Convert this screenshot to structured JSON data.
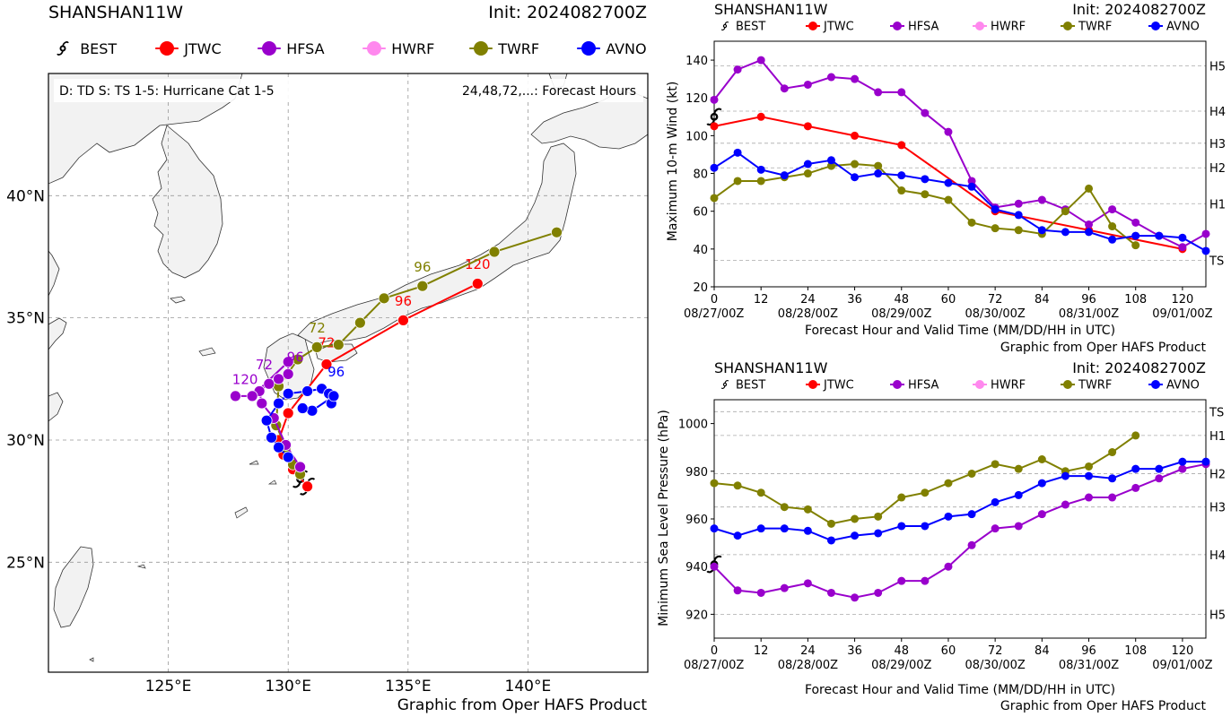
{
  "map": {
    "storm": "SHANSHAN11W",
    "init": "Init: 2024082700Z",
    "legend_box": "D: TD  S: TS  1-5: Hurricane Cat 1-5",
    "hours_note": "24,48,72,...: Forecast Hours",
    "footer": "Graphic from Oper HAFS Product",
    "lat_ticks": [
      "25°N",
      "30°N",
      "35°N",
      "40°N"
    ],
    "lon_ticks": [
      "125°E",
      "130°E",
      "135°E",
      "140°E"
    ]
  },
  "legend": [
    {
      "name": "BEST",
      "color": "#000000",
      "icon": "hurricane-symbol"
    },
    {
      "name": "JTWC",
      "color": "#ff0000",
      "icon": "dot"
    },
    {
      "name": "HFSA",
      "color": "#9900cc",
      "icon": "dot"
    },
    {
      "name": "HWRF",
      "color": "#ff88ee",
      "icon": "dot"
    },
    {
      "name": "TWRF",
      "color": "#808000",
      "icon": "dot"
    },
    {
      "name": "AVNO",
      "color": "#0000ff",
      "icon": "dot"
    }
  ],
  "wind_panel": {
    "storm": "SHANSHAN11W",
    "init": "Init: 2024082700Z",
    "ylabel": "Maximum 10-m Wind (kt)",
    "xlabel": "Forecast Hour and Valid Time (MM/DD/HH in UTC)",
    "footer": "Graphic from Oper HAFS Product"
  },
  "pres_panel": {
    "storm": "SHANSHAN11W",
    "init": "Init: 2024082700Z",
    "ylabel": "Minimum Sea Level Pressure (hPa)",
    "xlabel": "Forecast Hour and Valid Time (MM/DD/HH in UTC)",
    "footer": "Graphic from Oper HAFS Product"
  },
  "chart_data": [
    {
      "type": "scatter",
      "title": "SHANSHAN11W",
      "description_text": "Forecast track map",
      "xlim": [
        120,
        145
      ],
      "ylim": [
        20.5,
        45
      ],
      "x_ticks": [
        125,
        130,
        135,
        140
      ],
      "y_ticks": [
        25,
        30,
        35,
        40
      ],
      "grid": true,
      "series": [
        {
          "name": "BEST",
          "color": "#000000",
          "lon": [
            130.8,
            130.5
          ],
          "lat": [
            28.1,
            28.4
          ]
        },
        {
          "name": "JTWC",
          "color": "#ff0000",
          "lon": [
            130.8,
            130.2,
            129.8,
            129.6,
            130.0,
            131.6,
            134.8,
            137.9
          ],
          "lat": [
            28.1,
            28.8,
            29.4,
            30.0,
            31.1,
            33.1,
            34.9,
            36.4
          ],
          "labels": [
            {
              "text": "72",
              "lon": 131.6,
              "lat": 33.8
            },
            {
              "text": "96",
              "lon": 134.8,
              "lat": 35.5
            },
            {
              "text": "120",
              "lon": 137.9,
              "lat": 37.0
            }
          ]
        },
        {
          "name": "TWRF",
          "color": "#808000",
          "lon": [
            130.5,
            130.2,
            129.9,
            129.5,
            129.6,
            130.4,
            131.2,
            132.1,
            133.0,
            134.0,
            135.6,
            138.6,
            141.2
          ],
          "lat": [
            28.6,
            29.0,
            29.7,
            30.6,
            32.2,
            33.3,
            33.8,
            33.9,
            34.8,
            35.8,
            36.3,
            37.7,
            38.5
          ],
          "labels": [
            {
              "text": "72",
              "lon": 131.2,
              "lat": 34.4
            },
            {
              "text": "96",
              "lon": 135.6,
              "lat": 36.9
            }
          ]
        },
        {
          "name": "HFSA",
          "color": "#9900cc",
          "lon": [
            130.5,
            129.9,
            129.4,
            128.9,
            128.8,
            129.2,
            129.6,
            130.0,
            130.0,
            128.5,
            127.8
          ],
          "lat": [
            28.9,
            29.8,
            30.9,
            31.5,
            32.0,
            32.3,
            32.5,
            32.7,
            33.2,
            31.8,
            31.8
          ],
          "labels": [
            {
              "text": "72",
              "lon": 129.0,
              "lat": 32.9
            },
            {
              "text": "96",
              "lon": 130.3,
              "lat": 33.2
            },
            {
              "text": "120",
              "lon": 128.2,
              "lat": 32.3
            }
          ]
        },
        {
          "name": "AVNO",
          "color": "#0000ff",
          "lon": [
            130.0,
            129.6,
            129.3,
            129.1,
            129.6,
            130.0,
            130.8,
            131.4,
            131.7,
            131.8,
            131.9,
            131.0,
            130.6
          ],
          "lat": [
            29.3,
            29.7,
            30.1,
            30.8,
            31.5,
            31.9,
            32.0,
            32.1,
            31.9,
            31.5,
            31.8,
            31.2,
            31.3
          ],
          "labels": [
            {
              "text": "96",
              "lon": 132.0,
              "lat": 32.6
            }
          ]
        }
      ]
    },
    {
      "type": "line",
      "title": "SHANSHAN11W",
      "xlabel": "Forecast Hour and Valid Time (MM/DD/HH in UTC)",
      "ylabel": "Maximum 10-m Wind (kt)",
      "xlim": [
        0,
        126
      ],
      "ylim": [
        20,
        150
      ],
      "x_ticks": [
        0,
        12,
        24,
        36,
        48,
        60,
        72,
        84,
        96,
        108,
        120
      ],
      "y_ticks": [
        20,
        40,
        60,
        80,
        100,
        120,
        140
      ],
      "date_ticks": [
        {
          "x": 0,
          "label": "08/27/00Z"
        },
        {
          "x": 24,
          "label": "08/28/00Z"
        },
        {
          "x": 48,
          "label": "08/29/00Z"
        },
        {
          "x": 72,
          "label": "08/30/00Z"
        },
        {
          "x": 96,
          "label": "08/31/00Z"
        },
        {
          "x": 120,
          "label": "09/01/00Z"
        }
      ],
      "thresholds": [
        {
          "label": "TS",
          "value": 34
        },
        {
          "label": "H1",
          "value": 64
        },
        {
          "label": "H2",
          "value": 83
        },
        {
          "label": "H3",
          "value": 96
        },
        {
          "label": "H4",
          "value": 113
        },
        {
          "label": "H5",
          "value": 137
        }
      ],
      "grid": true,
      "series": [
        {
          "name": "BEST",
          "color": "#000000",
          "x": [
            0
          ],
          "y": [
            110
          ]
        },
        {
          "name": "JTWC",
          "color": "#ff0000",
          "x": [
            0,
            12,
            24,
            36,
            48,
            72,
            96,
            120
          ],
          "y": [
            105,
            110,
            105,
            100,
            95,
            60,
            50,
            40
          ]
        },
        {
          "name": "HFSA",
          "color": "#9900cc",
          "x": [
            0,
            6,
            12,
            18,
            24,
            30,
            36,
            42,
            48,
            54,
            60,
            66,
            72,
            78,
            84,
            90,
            96,
            102,
            108,
            114,
            120,
            126
          ],
          "y": [
            119,
            135,
            140,
            125,
            127,
            131,
            130,
            123,
            123,
            112,
            102,
            76,
            62,
            64,
            66,
            61,
            53,
            61,
            54,
            47,
            41,
            48
          ]
        },
        {
          "name": "TWRF",
          "color": "#808000",
          "x": [
            0,
            6,
            12,
            18,
            24,
            30,
            36,
            42,
            48,
            54,
            60,
            66,
            72,
            78,
            84,
            90,
            96,
            102,
            108
          ],
          "y": [
            67,
            76,
            76,
            78,
            80,
            84,
            85,
            84,
            71,
            69,
            66,
            54,
            51,
            50,
            48,
            60,
            72,
            52,
            42
          ]
        },
        {
          "name": "AVNO",
          "color": "#0000ff",
          "x": [
            0,
            6,
            12,
            18,
            24,
            30,
            36,
            42,
            48,
            54,
            60,
            66,
            72,
            78,
            84,
            90,
            96,
            102,
            108,
            114,
            120,
            126
          ],
          "y": [
            83,
            91,
            82,
            79,
            85,
            87,
            78,
            80,
            79,
            77,
            75,
            73,
            61,
            58,
            50,
            49,
            49,
            45,
            47,
            47,
            46,
            39
          ]
        }
      ]
    },
    {
      "type": "line",
      "title": "SHANSHAN11W",
      "xlabel": "Forecast Hour and Valid Time (MM/DD/HH in UTC)",
      "ylabel": "Minimum Sea Level Pressure (hPa)",
      "xlim": [
        0,
        126
      ],
      "ylim": [
        910,
        1010
      ],
      "x_ticks": [
        0,
        12,
        24,
        36,
        48,
        60,
        72,
        84,
        96,
        108,
        120
      ],
      "y_ticks": [
        920,
        940,
        960,
        980,
        1000
      ],
      "date_ticks": [
        {
          "x": 0,
          "label": "08/27/00Z"
        },
        {
          "x": 24,
          "label": "08/28/00Z"
        },
        {
          "x": 48,
          "label": "08/29/00Z"
        },
        {
          "x": 72,
          "label": "08/30/00Z"
        },
        {
          "x": 96,
          "label": "08/31/00Z"
        },
        {
          "x": 120,
          "label": "09/01/00Z"
        }
      ],
      "thresholds": [
        {
          "label": "TS",
          "value": 1005
        },
        {
          "label": "H1",
          "value": 995
        },
        {
          "label": "H2",
          "value": 979
        },
        {
          "label": "H3",
          "value": 965
        },
        {
          "label": "H4",
          "value": 945
        },
        {
          "label": "H5",
          "value": 920
        }
      ],
      "grid": true,
      "series": [
        {
          "name": "BEST",
          "color": "#000000",
          "x": [
            0
          ],
          "y": [
            941
          ]
        },
        {
          "name": "HFSA",
          "color": "#9900cc",
          "x": [
            0,
            6,
            12,
            18,
            24,
            30,
            36,
            42,
            48,
            54,
            60,
            66,
            72,
            78,
            84,
            90,
            96,
            102,
            108,
            114,
            120,
            126
          ],
          "y": [
            940,
            930,
            929,
            931,
            933,
            929,
            927,
            929,
            934,
            934,
            940,
            949,
            956,
            957,
            962,
            966,
            969,
            969,
            973,
            977,
            981,
            983
          ]
        },
        {
          "name": "TWRF",
          "color": "#808000",
          "x": [
            0,
            6,
            12,
            18,
            24,
            30,
            36,
            42,
            48,
            54,
            60,
            66,
            72,
            78,
            84,
            90,
            96,
            102,
            108
          ],
          "y": [
            975,
            974,
            971,
            965,
            964,
            958,
            960,
            961,
            969,
            971,
            975,
            979,
            983,
            981,
            985,
            980,
            982,
            988,
            995
          ]
        },
        {
          "name": "AVNO",
          "color": "#0000ff",
          "x": [
            0,
            6,
            12,
            18,
            24,
            30,
            36,
            42,
            48,
            54,
            60,
            66,
            72,
            78,
            84,
            90,
            96,
            102,
            108,
            114,
            120,
            126
          ],
          "y": [
            956,
            953,
            956,
            956,
            955,
            951,
            953,
            954,
            957,
            957,
            961,
            962,
            967,
            970,
            975,
            978,
            978,
            977,
            981,
            981,
            984,
            984
          ]
        }
      ]
    }
  ]
}
